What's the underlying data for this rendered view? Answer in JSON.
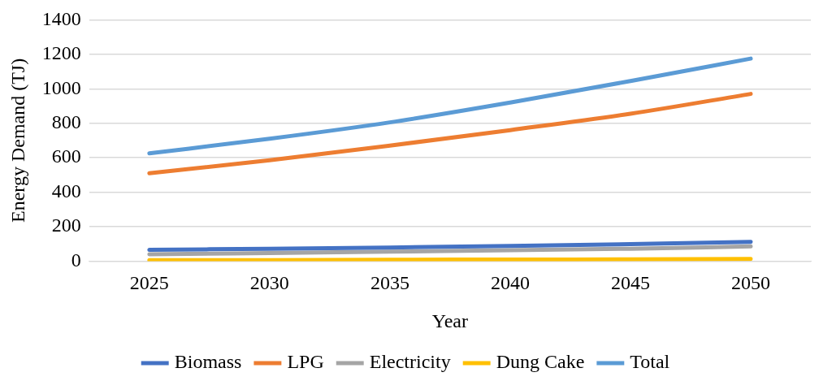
{
  "chart_data": {
    "type": "line",
    "xlabel": "Year",
    "ylabel": "Energy Demand (TJ)",
    "categories": [
      "2025",
      "2030",
      "2035",
      "2040",
      "2045",
      "2050"
    ],
    "series": [
      {
        "name": "Biomass",
        "color": "#4472c4",
        "values": [
          65,
          72,
          79,
          88,
          98,
          112
        ]
      },
      {
        "name": "LPG",
        "color": "#ed7d31",
        "values": [
          510,
          585,
          670,
          760,
          855,
          970
        ]
      },
      {
        "name": "Electricity",
        "color": "#a5a5a5",
        "values": [
          40,
          47,
          55,
          63,
          72,
          85
        ]
      },
      {
        "name": "Dung Cake",
        "color": "#ffc000",
        "values": [
          5,
          6,
          8,
          9,
          10,
          12
        ]
      },
      {
        "name": "Total",
        "color": "#5b9bd5",
        "values": [
          625,
          710,
          805,
          920,
          1045,
          1175
        ]
      }
    ],
    "ylim": [
      0,
      1400
    ],
    "yticks": [
      0,
      200,
      400,
      600,
      800,
      1000,
      1200,
      1400
    ],
    "grid": "y",
    "legend": "bottom",
    "marker": "none",
    "line_style": "solid"
  }
}
